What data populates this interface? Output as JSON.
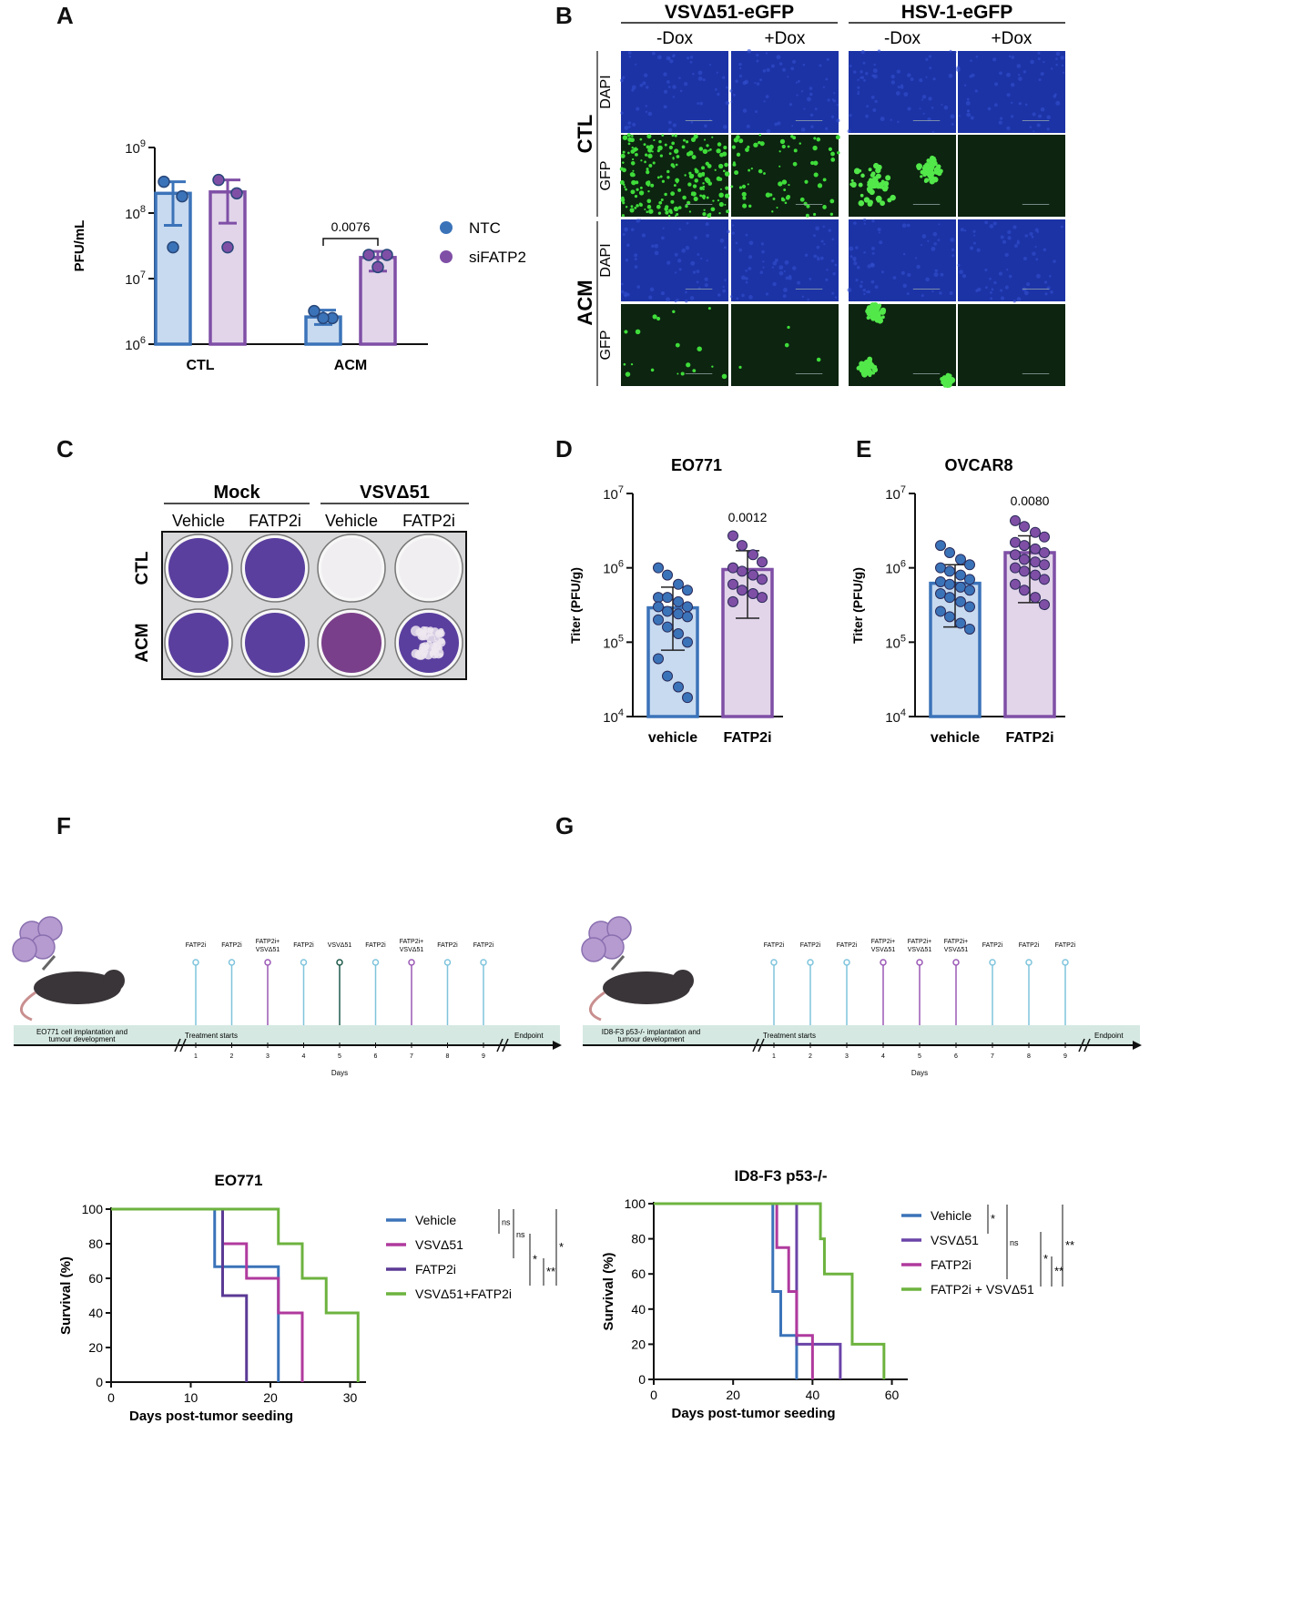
{
  "panels": {
    "a": "A",
    "b": "B",
    "c": "C",
    "d": "D",
    "e": "E",
    "f": "F",
    "g": "G"
  },
  "colors": {
    "ntc": "#3b73b9",
    "ntc_fill": "#c7daf0",
    "sifatp2": "#7f4fa6",
    "sifatp2_fill": "#e2d5ea",
    "vehicle_line": "#3b73b9",
    "vsv_line": "#b03a9e",
    "fatp2i_line": "#5b3a95",
    "combo_line": "#6db33f",
    "g_vsv_line": "#6a44a8",
    "g_fatp2i_line": "#b03a9e"
  },
  "chart_data": [
    {
      "id": "A",
      "type": "bar",
      "scale": "log",
      "ylabel": "PFU/mL",
      "yticks": [
        {
          "base": "10",
          "exp": "6",
          "value": 1000000.0
        },
        {
          "base": "10",
          "exp": "7",
          "value": 10000000.0
        },
        {
          "base": "10",
          "exp": "8",
          "value": 100000000.0
        },
        {
          "base": "10",
          "exp": "9",
          "value": 1000000000.0
        }
      ],
      "ylim": [
        1000000.0,
        1000000000.0
      ],
      "categories": [
        "CTL",
        "ACM"
      ],
      "series": [
        {
          "name": "NTC",
          "means": [
            200000000.0,
            2600000.0
          ],
          "sd_hi": [
            300000000.0,
            3300000.0
          ],
          "sd_lo": [
            65000000.0,
            2000000.0
          ],
          "points": [
            [
              300000000.0,
              180000000.0,
              30000000.0
            ],
            [
              3200000.0,
              2500000.0,
              2500000.0
            ]
          ]
        },
        {
          "name": "siFATP2",
          "means": [
            210000000.0,
            21000000.0
          ],
          "sd_hi": [
            320000000.0,
            26000000.0
          ],
          "sd_lo": [
            70000000.0,
            13000000.0
          ],
          "points": [
            [
              320000000.0,
              200000000.0,
              30000000.0
            ],
            [
              23000000.0,
              23000000.0,
              15000000.0
            ]
          ]
        }
      ],
      "annotation": {
        "text": "0.0076",
        "category": "ACM"
      },
      "legend": "right"
    },
    {
      "id": "D",
      "type": "bar",
      "scale": "log",
      "title": "EO771",
      "ylabel": "Titer (PFU/g)",
      "yticks": [
        {
          "base": "10",
          "exp": "4",
          "value": 10000.0
        },
        {
          "base": "10",
          "exp": "5",
          "value": 100000.0
        },
        {
          "base": "10",
          "exp": "6",
          "value": 1000000.0
        },
        {
          "base": "10",
          "exp": "7",
          "value": 10000000.0
        }
      ],
      "ylim": [
        10000.0,
        10000000.0
      ],
      "categories": [
        "vehicle",
        "FATP2i"
      ],
      "means": [
        290000.0,
        950000.0
      ],
      "sd_hi": [
        550000.0,
        1700000.0
      ],
      "sd_lo": [
        78000.0,
        210000.0
      ],
      "points": [
        [
          1000000.0,
          800000.0,
          600000.0,
          500000.0,
          400000.0,
          400000.0,
          350000.0,
          300000.0,
          300000.0,
          260000.0,
          240000.0,
          220000.0,
          200000.0,
          160000.0,
          130000.0,
          100000.0,
          60000.0,
          35000.0,
          25000.0,
          18000.0
        ],
        [
          2700000.0,
          2000000.0,
          1500000.0,
          1200000.0,
          1000000.0,
          900000.0,
          800000.0,
          700000.0,
          600000.0,
          500000.0,
          450000.0,
          400000.0,
          350000.0
        ]
      ],
      "annotation": "0.0012"
    },
    {
      "id": "E",
      "type": "bar",
      "scale": "log",
      "title": "OVCAR8",
      "ylabel": "Titer (PFU/g)",
      "yticks": [
        {
          "base": "10",
          "exp": "4",
          "value": 10000.0
        },
        {
          "base": "10",
          "exp": "5",
          "value": 100000.0
        },
        {
          "base": "10",
          "exp": "6",
          "value": 1000000.0
        },
        {
          "base": "10",
          "exp": "7",
          "value": 10000000.0
        }
      ],
      "ylim": [
        10000.0,
        10000000.0
      ],
      "categories": [
        "vehicle",
        "FATP2i"
      ],
      "means": [
        620000.0,
        1600000.0
      ],
      "sd_hi": [
        1100000.0,
        2700000.0
      ],
      "sd_lo": [
        160000.0,
        340000.0
      ],
      "points": [
        [
          2000000.0,
          1600000.0,
          1300000.0,
          1100000.0,
          1000000.0,
          900000.0,
          800000.0,
          700000.0,
          650000.0,
          600000.0,
          550000.0,
          500000.0,
          450000.0,
          400000.0,
          350000.0,
          300000.0,
          260000.0,
          220000.0,
          180000.0,
          150000.0
        ],
        [
          4300000.0,
          3600000.0,
          3000000.0,
          2600000.0,
          2200000.0,
          2000000.0,
          1800000.0,
          1600000.0,
          1500000.0,
          1300000.0,
          1200000.0,
          1100000.0,
          1000000.0,
          900000.0,
          800000.0,
          700000.0,
          600000.0,
          500000.0,
          400000.0,
          320000.0
        ]
      ],
      "annotation": "0.0080"
    },
    {
      "id": "F-survival",
      "type": "line",
      "title": "EO771",
      "xlabel": "Days post-tumor seeding",
      "ylabel": "Survival (%)",
      "xlim": [
        0,
        32
      ],
      "ylim": [
        0,
        100
      ],
      "xticks": [
        0,
        10,
        20,
        30
      ],
      "yticks": [
        0,
        20,
        40,
        60,
        80,
        100
      ],
      "series": [
        {
          "name": "Vehicle",
          "steps": [
            [
              0,
              100
            ],
            [
              13,
              100
            ],
            [
              13,
              66.7
            ],
            [
              21,
              66.7
            ],
            [
              21,
              0
            ]
          ]
        },
        {
          "name": "VSVΔ51",
          "steps": [
            [
              0,
              100
            ],
            [
              14,
              100
            ],
            [
              14,
              80
            ],
            [
              17,
              80
            ],
            [
              17,
              60
            ],
            [
              21,
              60
            ],
            [
              21,
              40
            ],
            [
              24,
              40
            ],
            [
              24,
              0
            ]
          ]
        },
        {
          "name": "FATP2i",
          "steps": [
            [
              0,
              100
            ],
            [
              14,
              100
            ],
            [
              14,
              50
            ],
            [
              17,
              50
            ],
            [
              17,
              0
            ]
          ]
        },
        {
          "name": "VSVΔ51+FATP2i",
          "steps": [
            [
              0,
              100
            ],
            [
              21,
              100
            ],
            [
              21,
              80
            ],
            [
              24,
              80
            ],
            [
              24,
              60
            ],
            [
              27,
              60
            ],
            [
              27,
              40
            ],
            [
              31,
              40
            ],
            [
              31,
              0
            ]
          ]
        }
      ],
      "significance": [
        "ns",
        "ns",
        "*",
        "**",
        "*"
      ]
    },
    {
      "id": "G-survival",
      "type": "line",
      "title": "ID8-F3 p53-/-",
      "xlabel": "Days post-tumor seeding",
      "ylabel": "Survival (%)",
      "xlim": [
        0,
        64
      ],
      "ylim": [
        0,
        100
      ],
      "xticks": [
        0,
        20,
        40,
        60
      ],
      "yticks": [
        0,
        20,
        40,
        60,
        80,
        100
      ],
      "series": [
        {
          "name": "Vehicle",
          "steps": [
            [
              0,
              100
            ],
            [
              30,
              100
            ],
            [
              30,
              50
            ],
            [
              32,
              50
            ],
            [
              32,
              25
            ],
            [
              36,
              25
            ],
            [
              36,
              0
            ]
          ]
        },
        {
          "name": "VSVΔ51",
          "steps": [
            [
              0,
              100
            ],
            [
              36,
              100
            ],
            [
              36,
              20
            ],
            [
              47,
              20
            ],
            [
              47,
              0
            ]
          ]
        },
        {
          "name": "FATP2i",
          "steps": [
            [
              0,
              100
            ],
            [
              31,
              100
            ],
            [
              31,
              75
            ],
            [
              34,
              75
            ],
            [
              34,
              50
            ],
            [
              36,
              50
            ],
            [
              36,
              25
            ],
            [
              40,
              25
            ],
            [
              40,
              0
            ]
          ]
        },
        {
          "name": "FATP2i + VSVΔ51",
          "steps": [
            [
              0,
              100
            ],
            [
              42,
              100
            ],
            [
              42,
              80
            ],
            [
              43,
              80
            ],
            [
              43,
              60
            ],
            [
              50,
              60
            ],
            [
              50,
              20
            ],
            [
              58,
              20
            ],
            [
              58,
              0
            ]
          ]
        }
      ],
      "significance": [
        "*",
        "ns",
        "*",
        "**",
        "**"
      ]
    }
  ],
  "panelB": {
    "groups": [
      "VSVΔ51-eGFP",
      "HSV-1-eGFP"
    ],
    "cols": [
      "-Dox",
      "+Dox",
      "-Dox",
      "+Dox"
    ],
    "rowgroups": [
      "CTL",
      "ACM"
    ],
    "rows": [
      "DAPI",
      "GFP",
      "DAPI",
      "GFP"
    ]
  },
  "panelC": {
    "groups": [
      "Mock",
      "VSVΔ51"
    ],
    "cols": [
      "Vehicle",
      "FATP2i",
      "Vehicle",
      "FATP2i"
    ],
    "rows": [
      "CTL",
      "ACM"
    ]
  },
  "timelineF": {
    "start_label": "EO771 cell implantation and tumour development",
    "treat_label": "Treatment starts",
    "end_label": "Endpoint",
    "axis_label": "Days",
    "days": [
      "1",
      "2",
      "3",
      "4",
      "5",
      "6",
      "7",
      "8",
      "9"
    ],
    "doses": [
      [
        "FATP2i"
      ],
      [
        "FATP2i"
      ],
      [
        "FATP2i+",
        "VSVΔ51"
      ],
      [
        "FATP2i"
      ],
      [
        "VSVΔ51"
      ],
      [
        "FATP2i"
      ],
      [
        "FATP2i+",
        "VSVΔ51"
      ],
      [
        "FATP2i"
      ],
      [
        "FATP2i"
      ]
    ]
  },
  "timelineG": {
    "start_label": "ID8-F3 p53-/- implantation and tumour development",
    "treat_label": "Treatment starts",
    "end_label": "Endpoint",
    "axis_label": "Days",
    "days": [
      "1",
      "2",
      "3",
      "4",
      "5",
      "6",
      "7",
      "8",
      "9"
    ],
    "doses": [
      [
        "FATP2i"
      ],
      [
        "FATP2i"
      ],
      [
        "FATP2i"
      ],
      [
        "FATP2i+",
        "VSVΔ51"
      ],
      [
        "FATP2i+",
        "VSVΔ51"
      ],
      [
        "FATP2i+",
        "VSVΔ51"
      ],
      [
        "FATP2i"
      ],
      [
        "FATP2i"
      ],
      [
        "FATP2i"
      ]
    ]
  }
}
